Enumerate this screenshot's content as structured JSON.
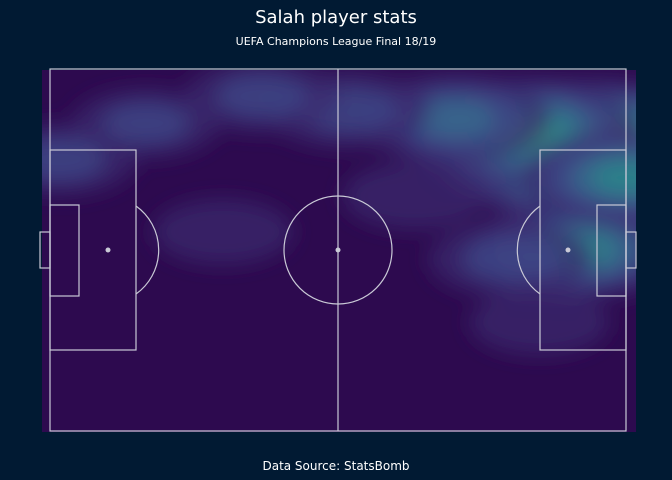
{
  "header": {
    "title": "Salah player stats",
    "subtitle": "UEFA Champions League Final 18/19"
  },
  "footer": {
    "caption": "Data Source: StatsBomb"
  },
  "colors": {
    "background": "#011a33",
    "pitch": "#2d0a4f",
    "lines": "#c9c9d6",
    "density_scale": [
      "#2d0a4f",
      "#3a2a6e",
      "#3e4a89",
      "#356e8d",
      "#2a8a8a",
      "#3fa47a",
      "#7ab05a",
      "#c98f3a"
    ]
  },
  "chart_data": {
    "type": "heatmap",
    "subtype": "2d-density-over-football-pitch",
    "title": "Salah player stats",
    "subtitle": "UEFA Champions League Final 18/19",
    "x_range": [
      0,
      120
    ],
    "y_range": [
      0,
      80
    ],
    "direction_of_play": "left-to-right",
    "grid": false,
    "legend": false,
    "density_peaks": [
      {
        "x": 112,
        "y": 18,
        "intensity": 1.0
      },
      {
        "x": 98,
        "y": 14,
        "intensity": 0.65
      },
      {
        "x": 84,
        "y": 11,
        "intensity": 0.45
      },
      {
        "x": 110,
        "y": 40,
        "intensity": 0.55
      },
      {
        "x": 120,
        "y": 24,
        "intensity": 0.5
      },
      {
        "x": 62,
        "y": 9,
        "intensity": 0.3
      },
      {
        "x": 44,
        "y": 6,
        "intensity": 0.25
      },
      {
        "x": 20,
        "y": 12,
        "intensity": 0.22
      },
      {
        "x": 2,
        "y": 20,
        "intensity": 0.25
      },
      {
        "x": 36,
        "y": 36,
        "intensity": 0.18
      },
      {
        "x": 96,
        "y": 42,
        "intensity": 0.3
      },
      {
        "x": 102,
        "y": 56,
        "intensity": 0.18
      },
      {
        "x": 76,
        "y": 28,
        "intensity": 0.2
      }
    ]
  }
}
